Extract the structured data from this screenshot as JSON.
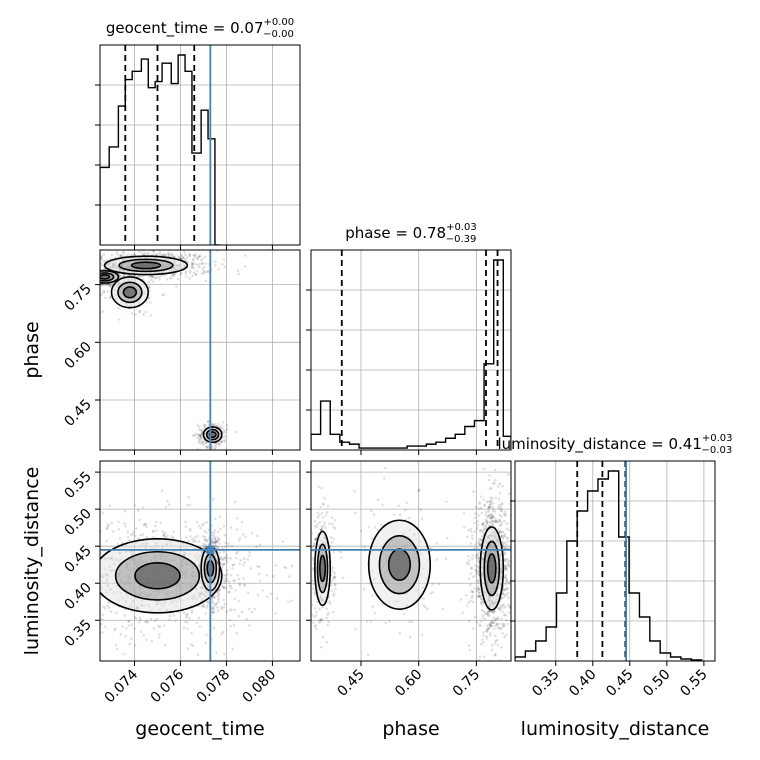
{
  "figure": {
    "type": "corner-plot",
    "truth_color": "#4682b4",
    "hist_color": "#000000",
    "grid": true
  },
  "parameters": [
    {
      "name": "geocent_time",
      "title": {
        "prefix": "geocent_time = ",
        "value": "0.07",
        "plus": "+0.00",
        "minus": "−0.00"
      },
      "range": [
        0.0725,
        0.0812
      ],
      "ticks": [
        {
          "v": 0.074,
          "label": "0.074"
        },
        {
          "v": 0.076,
          "label": "0.076"
        },
        {
          "v": 0.078,
          "label": "0.078"
        },
        {
          "v": 0.08,
          "label": "0.080"
        }
      ],
      "truth": 0.0773,
      "quantiles": [
        0.0736,
        0.075,
        0.0766
      ],
      "hist": {
        "edges": [
          0.0725,
          0.0729,
          0.0733,
          0.0736,
          0.0739,
          0.0743,
          0.0746,
          0.0749,
          0.0752,
          0.0756,
          0.0759,
          0.0762,
          0.0765,
          0.0769,
          0.0772,
          0.0775,
          0.0777
        ],
        "heights": [
          0.38,
          0.48,
          0.68,
          0.81,
          0.85,
          0.91,
          0.77,
          0.8,
          0.89,
          0.79,
          0.93,
          0.85,
          0.45,
          0.66,
          0.52,
          0.0
        ]
      }
    },
    {
      "name": "phase",
      "title": {
        "prefix": "phase = ",
        "value": "0.78",
        "plus": "+0.03",
        "minus": "−0.39"
      },
      "range": [
        0.32,
        0.84
      ],
      "ticks": [
        {
          "v": 0.45,
          "label": "0.45"
        },
        {
          "v": 0.6,
          "label": "0.60"
        },
        {
          "v": 0.75,
          "label": "0.75"
        }
      ],
      "truth": null,
      "quantiles": [
        0.4,
        0.775,
        0.805
      ],
      "hist": {
        "edges": [
          0.32,
          0.345,
          0.37,
          0.395,
          0.42,
          0.445,
          0.47,
          0.495,
          0.52,
          0.545,
          0.57,
          0.595,
          0.62,
          0.645,
          0.67,
          0.695,
          0.72,
          0.745,
          0.77,
          0.795,
          0.82,
          0.84
        ],
        "heights": [
          0.08,
          0.25,
          0.08,
          0.04,
          0.03,
          0.01,
          0.01,
          0.01,
          0.01,
          0.01,
          0.02,
          0.02,
          0.03,
          0.04,
          0.06,
          0.08,
          0.12,
          0.15,
          0.44,
          0.97,
          0.07
        ]
      }
    },
    {
      "name": "luminosity_distance",
      "title": {
        "prefix": "luminosity_distance = ",
        "value": "0.41",
        "plus": "+0.03",
        "minus": "−0.03"
      },
      "range": [
        0.295,
        0.565
      ],
      "ticks": [
        {
          "v": 0.35,
          "label": "0.35"
        },
        {
          "v": 0.4,
          "label": "0.40"
        },
        {
          "v": 0.45,
          "label": "0.45"
        },
        {
          "v": 0.5,
          "label": "0.50"
        },
        {
          "v": 0.55,
          "label": "0.55"
        }
      ],
      "truth": 0.445,
      "quantiles": [
        0.379,
        0.413,
        0.444
      ],
      "hist": {
        "edges": [
          0.295,
          0.309,
          0.323,
          0.337,
          0.351,
          0.365,
          0.379,
          0.393,
          0.407,
          0.421,
          0.435,
          0.449,
          0.463,
          0.477,
          0.491,
          0.505,
          0.519,
          0.533,
          0.547
        ],
        "heights": [
          0.02,
          0.05,
          0.1,
          0.17,
          0.34,
          0.6,
          0.75,
          0.85,
          0.91,
          0.95,
          0.62,
          0.34,
          0.22,
          0.1,
          0.04,
          0.02,
          0.01,
          0.005
        ]
      }
    }
  ],
  "axis_labels": {
    "x": [
      "geocent_time",
      "phase",
      "luminosity_distance"
    ],
    "y": [
      "phase",
      "luminosity_distance"
    ]
  },
  "chart_data": {
    "type": "scatter",
    "title": "",
    "parameters": [
      "geocent_time",
      "phase",
      "luminosity_distance"
    ],
    "truths": {
      "geocent_time": 0.0773,
      "luminosity_distance": 0.445
    },
    "pairs": [
      {
        "x": "geocent_time",
        "y": "phase",
        "density_clusters": [
          {
            "x": 0.0745,
            "y": 0.8,
            "sx": 0.0009,
            "sy": 0.012,
            "w": 0.45
          },
          {
            "x": 0.0727,
            "y": 0.77,
            "sx": 0.0003,
            "sy": 0.008,
            "w": 0.2
          },
          {
            "x": 0.0738,
            "y": 0.73,
            "sx": 0.0004,
            "sy": 0.02,
            "w": 0.1
          },
          {
            "x": 0.0774,
            "y": 0.36,
            "sx": 0.0002,
            "sy": 0.01,
            "w": 0.15
          }
        ]
      },
      {
        "x": "geocent_time",
        "y": "luminosity_distance",
        "density_clusters": [
          {
            "x": 0.075,
            "y": 0.41,
            "sx": 0.0014,
            "sy": 0.025,
            "w": 0.7
          },
          {
            "x": 0.0773,
            "y": 0.42,
            "sx": 0.0002,
            "sy": 0.015,
            "w": 0.3
          }
        ]
      },
      {
        "x": "phase",
        "y": "luminosity_distance",
        "density_clusters": [
          {
            "x": 0.79,
            "y": 0.42,
            "sx": 0.015,
            "sy": 0.028,
            "w": 0.7
          },
          {
            "x": 0.35,
            "y": 0.42,
            "sx": 0.01,
            "sy": 0.025,
            "w": 0.2
          },
          {
            "x": 0.55,
            "y": 0.425,
            "sx": 0.04,
            "sy": 0.03,
            "w": 0.1
          }
        ]
      }
    ]
  }
}
